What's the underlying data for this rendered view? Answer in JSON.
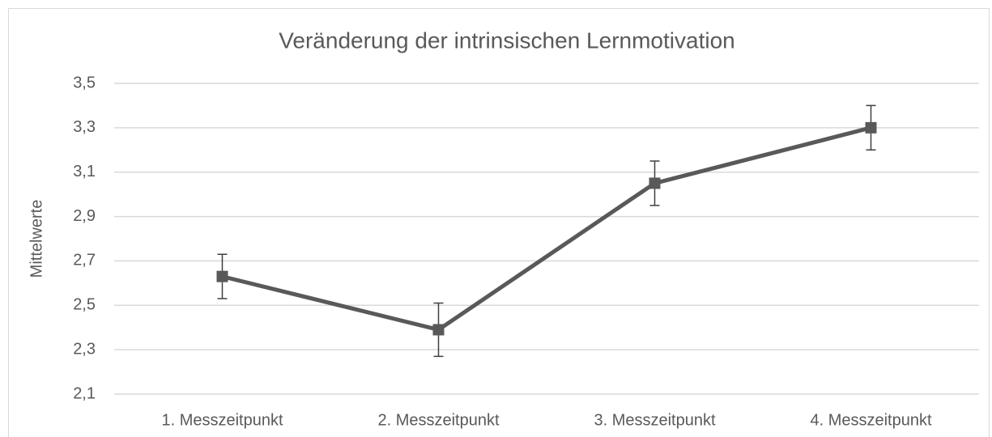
{
  "chart_data": {
    "type": "line",
    "title": "Veränderung der intrinsischen Lernmotivation",
    "y_label": "Mittelwerte",
    "categories": [
      "1. Messzeitpunkt",
      "2. Messzeitpunkt",
      "3. Messzeitpunkt",
      "4. Messzeitpunkt"
    ],
    "series": [
      {
        "name": "Mittelwerte",
        "color": "#595959",
        "values": [
          2.63,
          2.39,
          3.05,
          3.3
        ],
        "errors": [
          0.1,
          0.12,
          0.1,
          0.1
        ]
      }
    ],
    "ylim": [
      2.1,
      3.5
    ],
    "yticks": [
      {
        "value": 2.1,
        "label": "2,1"
      },
      {
        "value": 2.3,
        "label": "2,3"
      },
      {
        "value": 2.5,
        "label": "2,5"
      },
      {
        "value": 2.7,
        "label": "2,7"
      },
      {
        "value": 2.9,
        "label": "2,9"
      },
      {
        "value": 3.1,
        "label": "3,1"
      },
      {
        "value": 3.3,
        "label": "3,3"
      },
      {
        "value": 3.5,
        "label": "3,5"
      }
    ],
    "grid": true
  }
}
